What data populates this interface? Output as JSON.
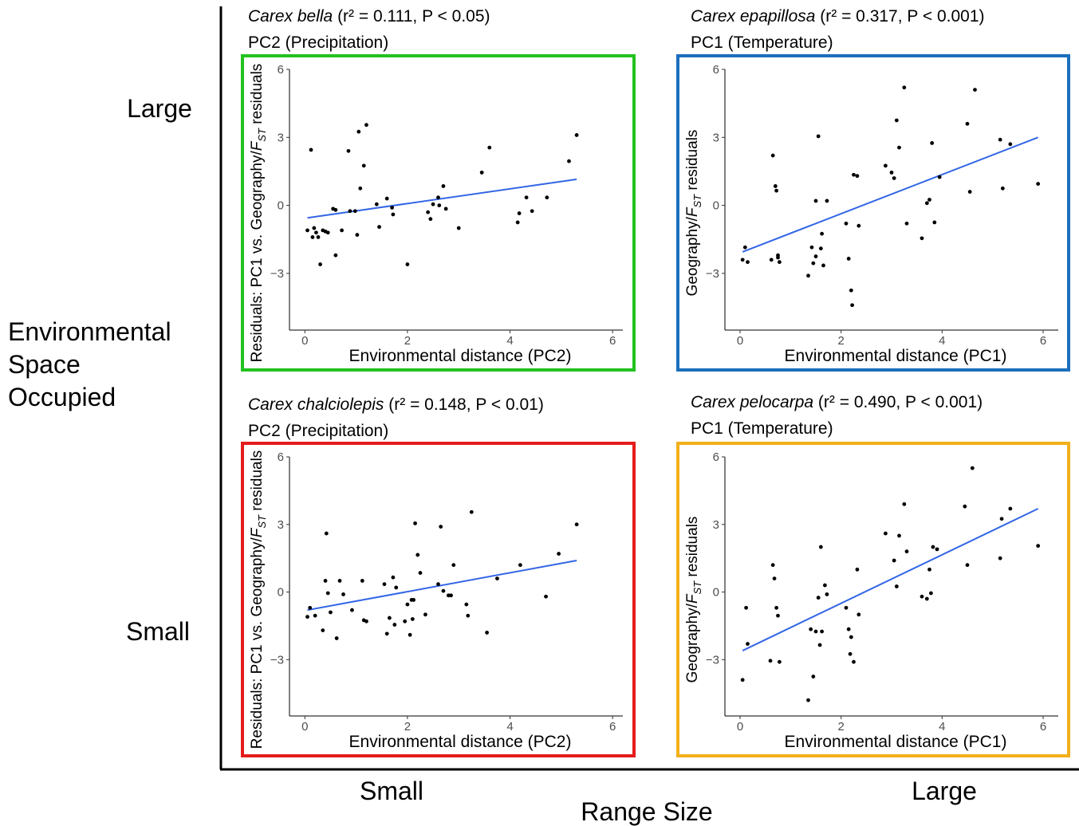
{
  "figure": {
    "y_axis_title_lines": [
      "Environmental",
      "Space",
      "Occupied"
    ],
    "y_tick_large": "Large",
    "y_tick_small": "Small",
    "x_axis_title": "Range Size",
    "x_tick_small": "Small",
    "x_tick_large": "Large"
  },
  "chart_data": [
    {
      "type": "scatter",
      "species": "Carex bella",
      "stats": "(r² = 0.111, P < 0.05)",
      "subtitle": "PC2 (Precipitation)",
      "frame_color": "#22c21f",
      "xlabel": "Environmental distance (PC2)",
      "ylabel": "Residuals: PC1 vs. Geography/F_ST residuals",
      "ylabel_parts": [
        "Residuals: PC1 vs. Geography/",
        "F",
        "ST",
        " residuals"
      ],
      "xlim": [
        -0.3,
        6.2
      ],
      "ylim": [
        -5.5,
        6
      ],
      "xticks": [
        0,
        2,
        4,
        6
      ],
      "yticks": [
        6,
        3,
        0,
        -3
      ],
      "ytick_labels": [
        "6",
        "3",
        "0",
        "−3"
      ],
      "fit_line": {
        "x": [
          0.05,
          5.3
        ],
        "y": [
          -0.55,
          1.15
        ],
        "color": "#3366e6"
      },
      "x": [
        0.05,
        0.12,
        0.15,
        0.18,
        0.22,
        0.26,
        0.3,
        0.35,
        0.4,
        0.45,
        0.55,
        0.6,
        0.6,
        0.72,
        0.85,
        0.88,
        0.98,
        1.02,
        1.05,
        1.08,
        1.15,
        1.2,
        1.4,
        1.45,
        1.6,
        1.7,
        1.72,
        2.0,
        2.4,
        2.45,
        2.5,
        2.6,
        2.62,
        2.7,
        2.75,
        3.0,
        3.45,
        3.6,
        4.15,
        4.18,
        4.32,
        4.43,
        4.72,
        5.15,
        5.3
      ],
      "y": [
        -1.1,
        2.45,
        -1.4,
        -1.0,
        -1.2,
        -1.4,
        -2.6,
        -1.1,
        -1.15,
        -1.2,
        -0.15,
        -2.2,
        -0.2,
        -1.1,
        2.4,
        -0.25,
        -0.25,
        -1.3,
        3.25,
        0.75,
        1.75,
        3.55,
        0.05,
        -0.95,
        0.3,
        -0.1,
        -0.4,
        -2.6,
        -0.3,
        -0.6,
        0.05,
        0.35,
        0.0,
        0.85,
        -0.15,
        -1.0,
        1.45,
        2.55,
        -0.75,
        -0.35,
        0.35,
        -0.25,
        0.35,
        1.95,
        3.1
      ]
    },
    {
      "type": "scatter",
      "species": "Carex epapillosa",
      "stats": "(r² = 0.317, P < 0.001)",
      "subtitle": "PC1 (Temperature)",
      "frame_color": "#1b6fbd",
      "xlabel": "Environmental distance (PC1)",
      "ylabel": "Geography/F_ST residuals",
      "ylabel_parts": [
        "Geography/",
        "F",
        "ST",
        " residuals"
      ],
      "xlim": [
        -0.3,
        6.3
      ],
      "ylim": [
        -5.5,
        6
      ],
      "xticks": [
        0,
        2,
        4,
        6
      ],
      "yticks": [
        6,
        3,
        0,
        -3
      ],
      "ytick_labels": [
        "6",
        "3",
        "0",
        "−3"
      ],
      "fit_line": {
        "x": [
          0.05,
          5.9
        ],
        "y": [
          -2.05,
          3.0
        ],
        "color": "#3366e6"
      },
      "x": [
        0.05,
        0.1,
        0.15,
        0.62,
        0.65,
        0.7,
        0.72,
        0.75,
        0.75,
        0.78,
        1.35,
        1.42,
        1.45,
        1.5,
        1.5,
        1.55,
        1.6,
        1.62,
        1.65,
        1.72,
        2.1,
        2.15,
        2.2,
        2.22,
        2.25,
        2.32,
        2.35,
        2.88,
        3.0,
        3.05,
        3.1,
        3.15,
        3.25,
        3.3,
        3.6,
        3.7,
        3.75,
        3.8,
        3.85,
        3.95,
        4.5,
        4.55,
        4.65,
        5.15,
        5.2,
        5.35,
        5.9
      ],
      "y": [
        -2.4,
        -1.85,
        -2.5,
        -2.4,
        2.2,
        0.85,
        0.65,
        -2.2,
        -2.3,
        -2.5,
        -3.1,
        -1.85,
        -2.55,
        -2.25,
        0.2,
        3.05,
        -1.9,
        -1.25,
        -2.65,
        0.2,
        -0.8,
        -2.35,
        -3.75,
        -4.4,
        1.35,
        1.3,
        -0.9,
        1.75,
        1.45,
        1.2,
        3.75,
        2.55,
        5.2,
        -0.8,
        -1.45,
        0.1,
        0.25,
        2.75,
        -0.75,
        1.25,
        3.6,
        0.6,
        5.1,
        2.9,
        0.75,
        2.7,
        0.95
      ]
    },
    {
      "type": "scatter",
      "species": "Carex chalciolepis",
      "stats": "(r² = 0.148, P < 0.01)",
      "subtitle": "PC2 (Precipitation)",
      "frame_color": "#e51c1c",
      "xlabel": "Environmental distance (PC2)",
      "ylabel": "Residuals: PC1 vs. Geography/F_ST residuals",
      "ylabel_parts": [
        "Residuals: PC1 vs. Geography/",
        "F",
        "ST",
        " residuals"
      ],
      "xlim": [
        -0.3,
        6.2
      ],
      "ylim": [
        -5.5,
        6
      ],
      "xticks": [
        0,
        2,
        4,
        6
      ],
      "yticks": [
        6,
        3,
        0,
        -3
      ],
      "ytick_labels": [
        "6",
        "3",
        "0",
        "−3"
      ],
      "fit_line": {
        "x": [
          0.05,
          5.3
        ],
        "y": [
          -0.8,
          1.4
        ],
        "color": "#3366e6"
      },
      "x": [
        0.05,
        0.1,
        0.2,
        0.35,
        0.4,
        0.42,
        0.45,
        0.5,
        0.62,
        0.68,
        0.75,
        0.92,
        1.12,
        1.15,
        1.2,
        1.55,
        1.6,
        1.65,
        1.72,
        1.75,
        1.78,
        1.95,
        2.0,
        2.05,
        2.08,
        2.1,
        2.12,
        2.15,
        2.2,
        2.25,
        2.35,
        2.6,
        2.65,
        2.7,
        2.8,
        2.85,
        2.9,
        3.15,
        3.18,
        3.25,
        3.55,
        3.75,
        4.2,
        4.7,
        4.95,
        5.3
      ],
      "y": [
        -1.1,
        -0.7,
        -1.05,
        -1.7,
        0.5,
        2.6,
        -0.05,
        -0.9,
        -2.05,
        0.5,
        -0.1,
        -0.8,
        0.5,
        -1.25,
        -1.3,
        0.35,
        -1.85,
        -1.15,
        0.65,
        -1.45,
        0.2,
        -1.3,
        -0.55,
        -1.9,
        -0.35,
        -1.2,
        -0.35,
        3.05,
        1.65,
        0.85,
        -1.0,
        0.35,
        2.9,
        0.05,
        -0.15,
        -0.15,
        1.2,
        -0.55,
        -1.05,
        3.55,
        -1.8,
        0.6,
        1.2,
        -0.2,
        1.7,
        3.0
      ]
    },
    {
      "type": "scatter",
      "species": "Carex pelocarpa",
      "stats": "(r² = 0.490, P < 0.001)",
      "subtitle": "PC1 (Temperature)",
      "frame_color": "#f2b01b",
      "xlabel": "Environmental distance (PC1)",
      "ylabel": "Geography/F_ST residuals",
      "ylabel_parts": [
        "Geography/",
        "F",
        "ST",
        " residuals"
      ],
      "xlim": [
        -0.3,
        6.3
      ],
      "ylim": [
        -5.5,
        6
      ],
      "xticks": [
        0,
        2,
        4,
        6
      ],
      "yticks": [
        6,
        3,
        0,
        -3
      ],
      "ytick_labels": [
        "6",
        "3",
        "0",
        "−3"
      ],
      "fit_line": {
        "x": [
          0.05,
          5.9
        ],
        "y": [
          -2.6,
          3.7
        ],
        "color": "#3366e6"
      },
      "x": [
        0.05,
        0.12,
        0.15,
        0.6,
        0.65,
        0.68,
        0.72,
        0.75,
        0.78,
        1.35,
        1.4,
        1.45,
        1.5,
        1.55,
        1.58,
        1.6,
        1.62,
        1.68,
        1.72,
        2.1,
        2.15,
        2.18,
        2.2,
        2.25,
        2.32,
        2.35,
        2.88,
        3.05,
        3.1,
        3.15,
        3.25,
        3.3,
        3.6,
        3.7,
        3.75,
        3.78,
        3.82,
        3.9,
        4.45,
        4.5,
        4.6,
        5.15,
        5.18,
        5.35,
        5.9
      ],
      "y": [
        -3.9,
        -0.7,
        -2.3,
        -3.05,
        1.2,
        0.6,
        -0.7,
        -1.05,
        -3.1,
        -4.8,
        -1.65,
        -3.75,
        -1.75,
        -0.25,
        -2.35,
        2.0,
        -1.75,
        0.3,
        -0.1,
        -0.7,
        -1.65,
        -2.75,
        -2.0,
        -3.1,
        1.0,
        -1.0,
        2.6,
        1.4,
        0.25,
        2.5,
        3.9,
        1.8,
        -0.2,
        -0.3,
        1.0,
        -0.05,
        2.0,
        1.9,
        3.8,
        1.2,
        5.5,
        1.5,
        3.25,
        3.7,
        2.05
      ]
    }
  ]
}
